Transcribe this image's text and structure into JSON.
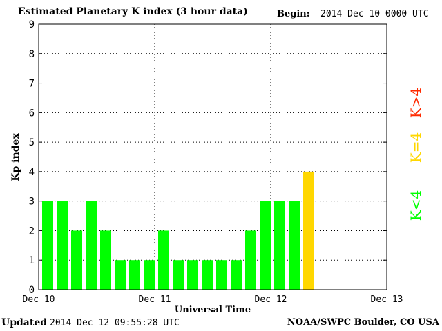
{
  "header": {
    "title": "Estimated Planetary K index (3 hour data)",
    "begin_label": "Begin:",
    "begin_value": "2014 Dec 10 0000 UTC"
  },
  "footer": {
    "updated_label": "Updated",
    "updated_value": "2014 Dec 12 09:55:28 UTC",
    "source": "NOAA/SWPC Boulder, CO USA"
  },
  "legend": {
    "items": [
      {
        "label": "K<4",
        "color": "#00ff00"
      },
      {
        "label": "K=4",
        "color": "#ffd700"
      },
      {
        "label": "K>4",
        "color": "#ff2a00"
      }
    ]
  },
  "chart_data": {
    "type": "bar",
    "title": "Estimated Planetary K index (3 hour data)",
    "xlabel": "Universal Time",
    "ylabel": "Kp index",
    "ylim": [
      0,
      9
    ],
    "yticks": [
      0,
      1,
      2,
      3,
      4,
      5,
      6,
      7,
      8,
      9
    ],
    "xlim_days": [
      0,
      3
    ],
    "xticks": [
      "Dec 10",
      "Dec 11",
      "Dec 12",
      "Dec 13"
    ],
    "interval_hours": 3,
    "grid": true,
    "values": [
      3,
      3,
      2,
      3,
      2,
      1,
      1,
      1,
      2,
      1,
      1,
      1,
      1,
      1,
      2,
      3,
      3,
      3,
      4
    ],
    "colors": {
      "below": "#00ff00",
      "equal": "#ffd700",
      "above": "#ff2a00"
    }
  }
}
